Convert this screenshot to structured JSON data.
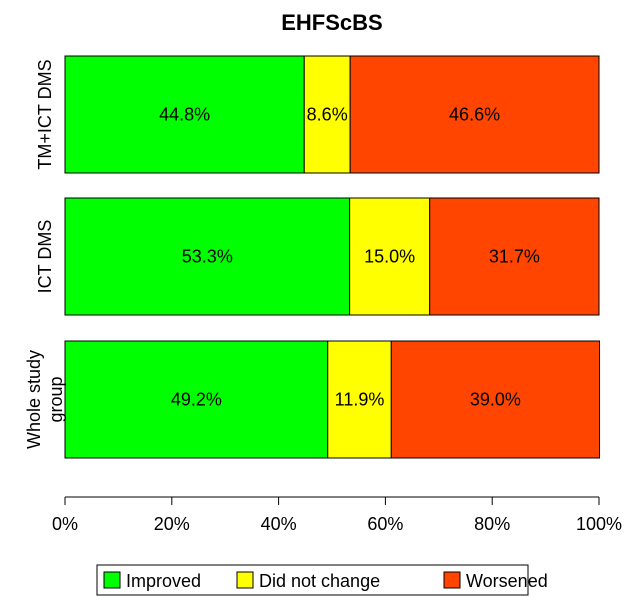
{
  "chart_data": {
    "type": "bar",
    "orientation": "horizontal",
    "stacked": true,
    "title": "EHFScBS",
    "categories": [
      "TM+ICT DMS",
      "ICT DMS",
      "Whole study group"
    ],
    "category_label_lines": [
      [
        "TM+ICT DMS"
      ],
      [
        "ICT DMS"
      ],
      [
        "Whole study",
        "group"
      ]
    ],
    "series": [
      {
        "name": "Improved",
        "color": "#00ff00",
        "values": [
          44.8,
          53.3,
          49.2
        ],
        "labels": [
          "44.8%",
          "53.3%",
          "49.2%"
        ]
      },
      {
        "name": "Did not change",
        "color": "#ffff00",
        "values": [
          8.6,
          15.0,
          11.9
        ],
        "labels": [
          "8.6%",
          "15.0%",
          "11.9%"
        ]
      },
      {
        "name": "Worsened",
        "color": "#ff4500",
        "values": [
          46.6,
          31.7,
          39.0
        ],
        "labels": [
          "46.6%",
          "31.7%",
          "39.0%"
        ]
      }
    ],
    "xlim": [
      0,
      100
    ],
    "xticks": [
      0,
      20,
      40,
      60,
      80,
      100
    ],
    "xtick_labels": [
      "0%",
      "20%",
      "40%",
      "60%",
      "80%",
      "100%"
    ],
    "xlabel": "",
    "ylabel": "",
    "grid": false,
    "legend_position": "bottom"
  }
}
